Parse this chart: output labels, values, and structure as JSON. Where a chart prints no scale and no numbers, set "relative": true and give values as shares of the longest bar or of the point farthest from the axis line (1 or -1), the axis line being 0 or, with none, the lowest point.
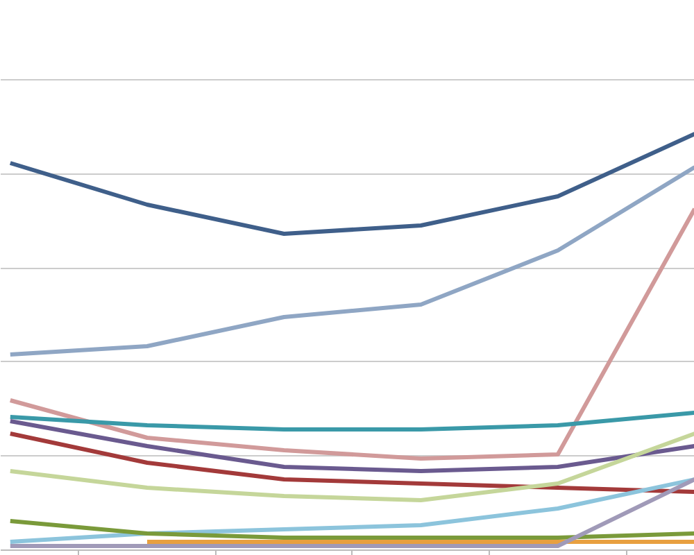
{
  "chart_data": {
    "type": "line",
    "relative": true,
    "grid": "y",
    "categories": [
      null,
      null,
      null,
      null,
      null,
      null
    ],
    "series": [
      {
        "color": "#3f5f8a",
        "values": [
          0.93,
          0.83,
          0.76,
          0.78,
          0.85,
          1.0
        ]
      },
      {
        "color": "#8fa6c4",
        "values": [
          0.47,
          0.49,
          0.56,
          0.59,
          0.72,
          0.92
        ]
      },
      {
        "color": "#d19a9a",
        "values": [
          0.36,
          0.27,
          0.24,
          0.22,
          0.23,
          0.82
        ]
      },
      {
        "color": "#3a99a8",
        "values": [
          0.32,
          0.3,
          0.29,
          0.29,
          0.3,
          0.33
        ]
      },
      {
        "color": "#6a5a8f",
        "values": [
          0.31,
          0.25,
          0.2,
          0.19,
          0.2,
          0.25
        ]
      },
      {
        "color": "#a33a3a",
        "values": [
          0.28,
          0.21,
          0.17,
          0.16,
          0.15,
          0.14
        ]
      },
      {
        "color": "#c5d69a",
        "values": [
          0.19,
          0.15,
          0.13,
          0.12,
          0.16,
          0.28
        ]
      },
      {
        "color": "#8cc4dc",
        "values": [
          0.02,
          0.04,
          0.05,
          0.06,
          0.1,
          0.17
        ]
      },
      {
        "color": "#7a9a3a",
        "values": [
          0.07,
          0.04,
          0.03,
          0.03,
          0.03,
          0.04
        ]
      },
      {
        "color": "#e8a040",
        "values": [
          null,
          0.02,
          0.02,
          0.02,
          0.02,
          0.02
        ]
      },
      {
        "color": "#a09ab8",
        "values": [
          0.01,
          0.01,
          0.01,
          0.01,
          0.01,
          0.17
        ]
      }
    ]
  }
}
